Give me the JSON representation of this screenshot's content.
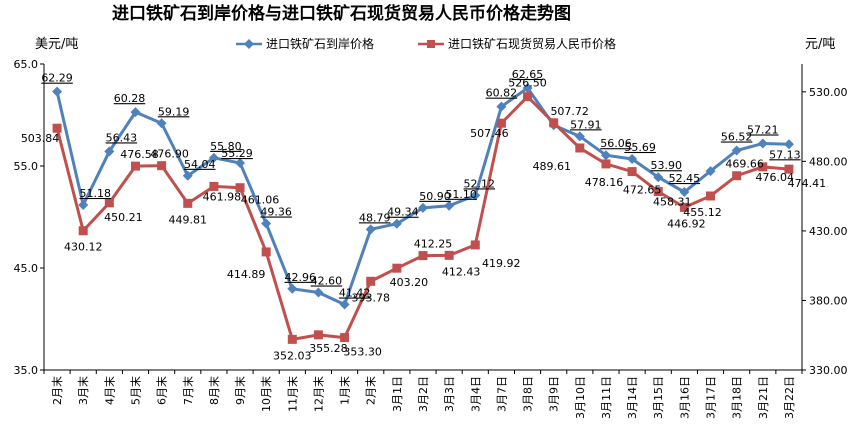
{
  "chart_data": {
    "type": "line",
    "title": "进口铁矿石到岸价格与进口铁矿石现货贸易人民币价格走势图",
    "left_unit": "美元/吨",
    "right_unit": "元/吨",
    "categories": [
      "2月末",
      "3月末",
      "4月末",
      "5月末",
      "6月末",
      "7月末",
      "8月末",
      "9月末",
      "10月末",
      "11月末",
      "12月末",
      "1月末",
      "2月末",
      "3月1日",
      "3月2日",
      "3月3日",
      "3月4日",
      "3月7日",
      "3月8日",
      "3月9日",
      "3月10日",
      "3月11日",
      "3月14日",
      "3月15日",
      "3月16日",
      "3月17日",
      "3月18日",
      "3月21日",
      "3月22日"
    ],
    "left_axis": {
      "min": 35,
      "max": 65,
      "ticks": [
        "35.0",
        "45.0",
        "55.0",
        "65.0"
      ]
    },
    "right_axis": {
      "min": 330,
      "max": 550,
      "ticks": [
        "330.00",
        "380.00",
        "430.00",
        "480.00",
        "530.00"
      ]
    },
    "series": [
      {
        "name": "进口铁矿石到岸价格",
        "axis": "left",
        "color": "#4f81bd",
        "marker": "diamond",
        "values": [
          62.29,
          51.18,
          56.43,
          60.28,
          59.19,
          54.04,
          55.8,
          55.29,
          49.36,
          42.96,
          42.6,
          41.42,
          48.79,
          49.34,
          50.9,
          51.1,
          52.12,
          60.82,
          62.65,
          59.0,
          57.91,
          56.06,
          55.69,
          53.9,
          52.45,
          54.5,
          56.52,
          57.21,
          57.13
        ],
        "labels": [
          "62.29",
          "51.18",
          "56.43",
          "60.28",
          "59.19",
          "54.04",
          "55.80",
          "55.29",
          "49.36",
          "42.96",
          "42.60",
          "41.42",
          "48.79",
          "49.34",
          "50.90",
          "51.10",
          "52.12",
          "60.82",
          "62.65",
          "",
          "57.91",
          "56.06",
          "55.69",
          "53.90",
          "52.45",
          "",
          "56.52",
          "57.21",
          "57.13"
        ]
      },
      {
        "name": "进口铁矿石现货贸易人民币价格",
        "axis": "right",
        "color": "#c0504d",
        "marker": "square",
        "values": [
          503.84,
          430.12,
          450.21,
          476.58,
          476.9,
          449.81,
          461.98,
          461.06,
          414.89,
          352.03,
          355.28,
          353.3,
          393.78,
          403.2,
          412.25,
          412.43,
          419.92,
          507.46,
          526.5,
          507.72,
          489.61,
          478.16,
          472.65,
          458.31,
          446.92,
          455.12,
          469.66,
          476.04,
          474.41
        ],
        "labels": [
          "503.84",
          "430.12",
          "450.21",
          "476.58",
          "476.90",
          "449.81",
          "461.98",
          "461.06",
          "414.89",
          "352.03",
          "355.28",
          "353.30",
          "393.78",
          "403.20",
          "412.25",
          "412.43",
          "419.92",
          "507.46",
          "526.50",
          "507.72",
          "489.61",
          "478.16",
          "472.65",
          "458.31",
          "446.92",
          "455.12",
          "469.66",
          "476.04",
          "474.41"
        ]
      }
    ],
    "legend": "top-center",
    "grid": false
  }
}
